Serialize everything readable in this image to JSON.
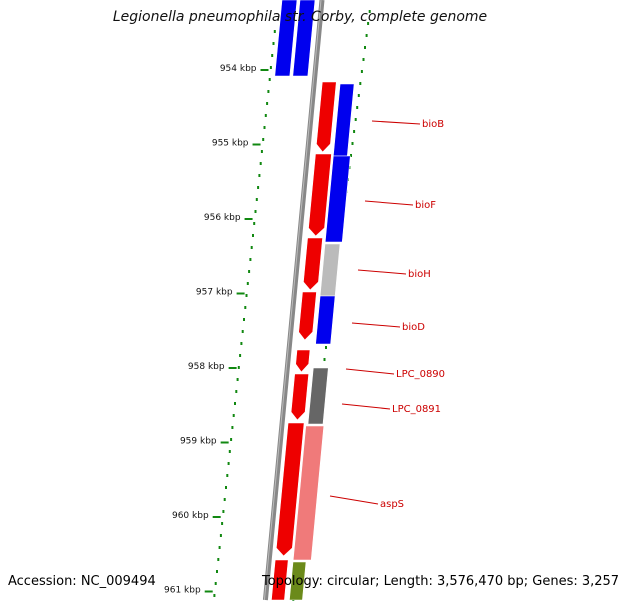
{
  "title": "Legionella pneumophila str. Corby, complete genome",
  "accession_label": "Accession: NC_009494",
  "topology_label": "Topology: circular; Length: 3,576,470 bp; Genes: 3,257",
  "colors": {
    "forward_gene": "#ee0000",
    "reverse_gene": "#0000ee",
    "gray_gene": "#bbbbbb",
    "dark_gene": "#666666",
    "pink_gene": "#f07a7a",
    "olive_gene": "#6b8a1a",
    "backbone": "#888888",
    "tick": "#118811",
    "gene_label": "#cc0000"
  },
  "ticks": [
    {
      "label": "954 kbp"
    },
    {
      "label": "955 kbp"
    },
    {
      "label": "956 kbp"
    },
    {
      "label": "957 kbp"
    },
    {
      "label": "958 kbp"
    },
    {
      "label": "959 kbp"
    },
    {
      "label": "960 kbp"
    },
    {
      "label": "961 kbp"
    }
  ],
  "gene_labels": [
    "bioB",
    "bioF",
    "bioH",
    "bioD",
    "LPC_0890",
    "LPC_0891",
    "aspS"
  ]
}
